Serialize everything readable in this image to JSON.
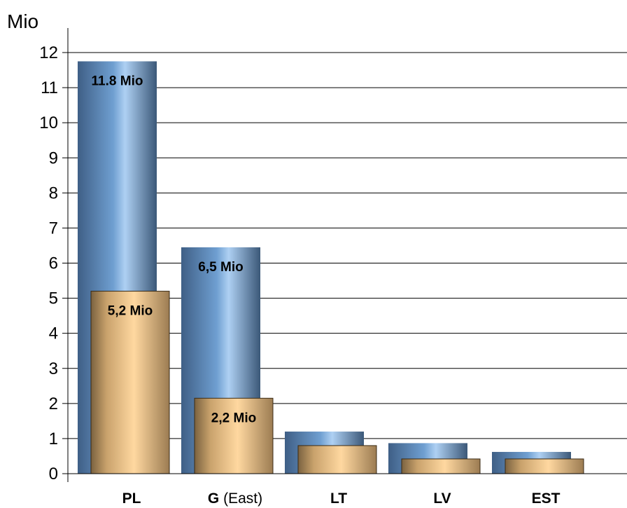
{
  "chart_data": {
    "type": "bar",
    "ylabel": "Mio",
    "ylim": [
      0,
      12
    ],
    "yticks": [
      0,
      1,
      2,
      3,
      4,
      5,
      6,
      7,
      8,
      9,
      10,
      11,
      12
    ],
    "grid": true,
    "categories": [
      {
        "bold": "PL",
        "suffix": ""
      },
      {
        "bold": "G",
        "suffix": " (East)"
      },
      {
        "bold": "LT",
        "suffix": ""
      },
      {
        "bold": "LV",
        "suffix": ""
      },
      {
        "bold": "EST",
        "suffix": ""
      }
    ],
    "series": [
      {
        "values": [
          11.75,
          6.45,
          1.2,
          0.87,
          0.62
        ],
        "color": "#5a88b8",
        "labels": [
          "11.8 Mio",
          "6,5 Mio",
          "",
          "",
          ""
        ]
      },
      {
        "values": [
          5.2,
          2.15,
          0.8,
          0.42,
          0.42
        ],
        "color": "#f2c88a",
        "labels": [
          "5,2 Mio",
          "2,2 Mio",
          "",
          "",
          ""
        ]
      }
    ]
  }
}
